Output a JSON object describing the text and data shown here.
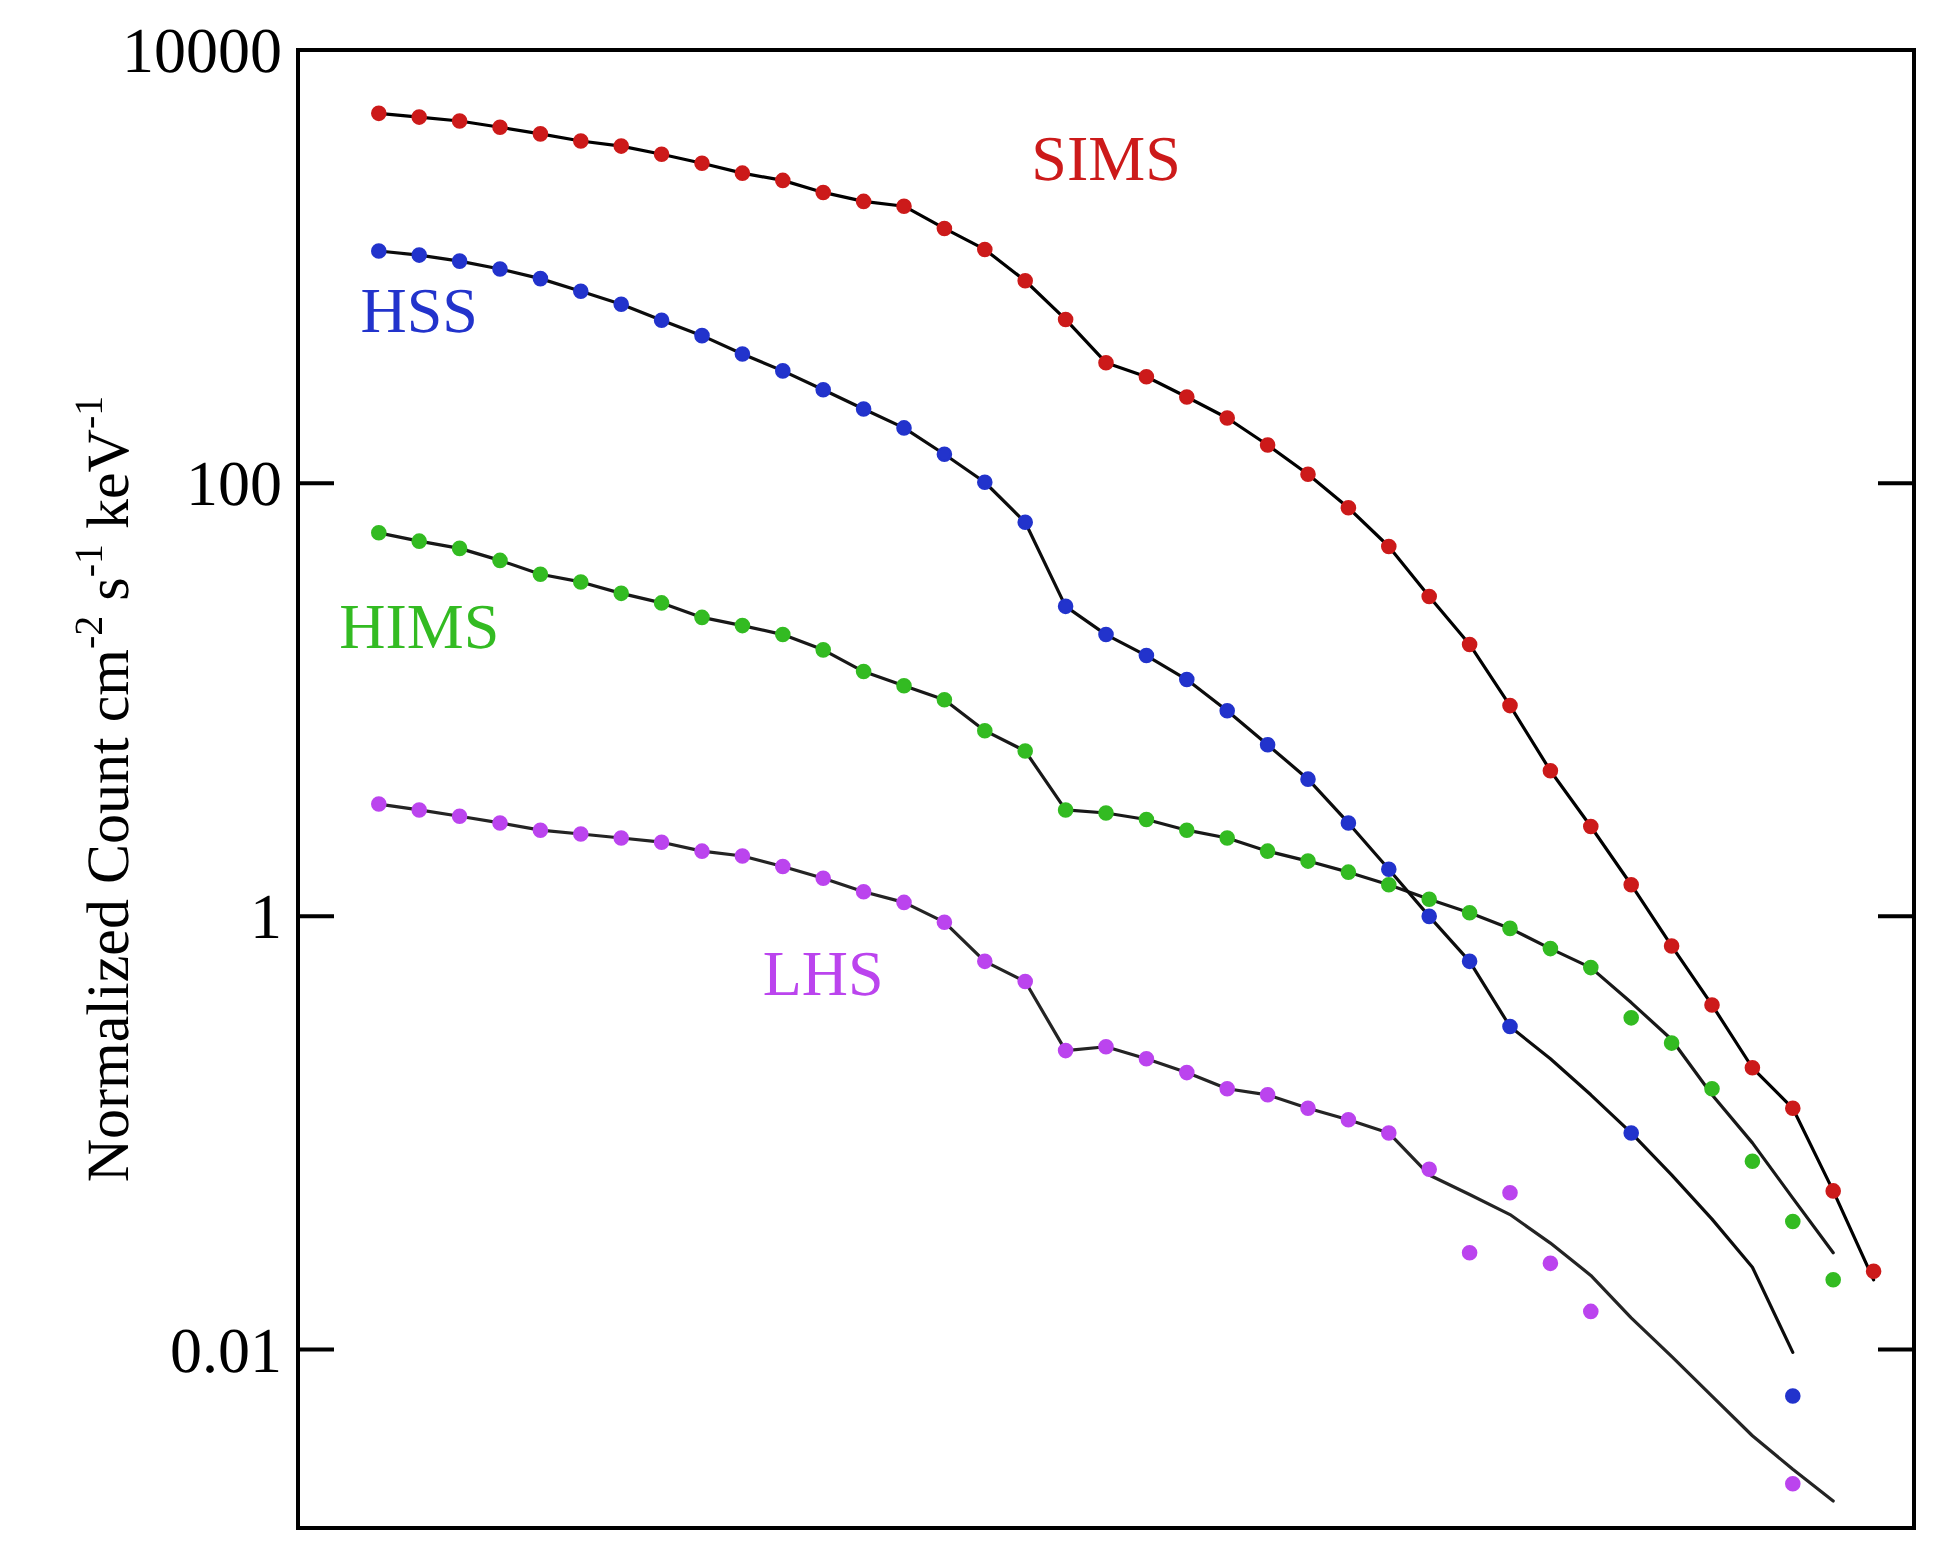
{
  "chart_data": {
    "type": "scatter",
    "ylabel": "Normalized Count cm$^{-2}$ s$^{-1}$ keV$^{-1}$",
    "log": "y",
    "tick_labels": "y",
    "marker": "circle",
    "categories": [
      null,
      null,
      null,
      null,
      null,
      null,
      null,
      null,
      null,
      null,
      null,
      null,
      null,
      null,
      null,
      null,
      null,
      null,
      null,
      null,
      null,
      null,
      null,
      null,
      null,
      null,
      null,
      null,
      null,
      null,
      null,
      null,
      null,
      null,
      null,
      null,
      null,
      null,
      null,
      null,
      null
    ],
    "ylim": [
      0.0015,
      10000
    ],
    "yticks": [
      0.01,
      1,
      100,
      10000
    ],
    "series": [
      {
        "name": "SIMS",
        "color": "#cc1a1a",
        "values": [
          null,
          null,
          5100,
          4900,
          4700,
          4400,
          4100,
          3800,
          3600,
          3300,
          3000,
          2700,
          2500,
          2200,
          2000,
          1900,
          1500,
          1200,
          860,
          570,
          360,
          310,
          250,
          200,
          150,
          110,
          77,
          51,
          30,
          18,
          9.4,
          4.7,
          2.6,
          1.4,
          0.73,
          0.39,
          0.2,
          0.13,
          0.054,
          0.023,
          null
        ]
      },
      {
        "name": "HSS",
        "color": "#2233cc",
        "values": [
          null,
          null,
          1180,
          1130,
          1060,
          975,
          880,
          770,
          670,
          565,
          480,
          395,
          330,
          270,
          220,
          180,
          136,
          101,
          66,
          27,
          20,
          16,
          12.4,
          8.9,
          6.2,
          4.3,
          2.7,
          1.65,
          1.0,
          0.62,
          0.31,
          null,
          null,
          0.1,
          null,
          null,
          null,
          0.0061,
          null,
          null,
          null
        ]
      },
      {
        "name": "HIMS",
        "color": "#33bb22",
        "values": [
          null,
          null,
          59,
          54,
          50,
          44,
          38,
          35,
          31,
          28,
          24,
          22,
          20,
          17,
          13.5,
          11.6,
          10,
          7.2,
          5.8,
          3.1,
          3.0,
          2.8,
          2.5,
          2.3,
          2.0,
          1.8,
          1.6,
          1.4,
          1.2,
          1.04,
          0.88,
          0.71,
          0.58,
          0.34,
          0.26,
          0.16,
          0.074,
          0.039,
          0.021,
          null,
          null
        ]
      },
      {
        "name": "LHS",
        "color": "#bb44ee",
        "values": [
          null,
          null,
          3.3,
          3.1,
          2.9,
          2.7,
          2.5,
          2.4,
          2.3,
          2.2,
          2.0,
          1.9,
          1.7,
          1.5,
          1.3,
          1.16,
          0.94,
          0.62,
          0.5,
          0.24,
          0.25,
          0.22,
          0.19,
          0.16,
          0.15,
          0.13,
          0.115,
          0.1,
          0.068,
          0.028,
          0.053,
          0.025,
          0.015,
          null,
          null,
          null,
          null,
          0.0024,
          null,
          null,
          null
        ]
      },
      {
        "type": "line",
        "color": "#000000",
        "marker": "none",
        "values": [
          null,
          null,
          5100,
          4900,
          4700,
          4400,
          4100,
          3800,
          3600,
          3300,
          3000,
          2700,
          2500,
          2200,
          2000,
          1900,
          1500,
          1200,
          860,
          570,
          360,
          310,
          250,
          200,
          150,
          110,
          77,
          51,
          30,
          18,
          9.4,
          4.7,
          2.6,
          1.4,
          0.73,
          0.39,
          0.2,
          0.13,
          0.054,
          0.021,
          null
        ]
      },
      {
        "type": "line",
        "color": "#0c0c0c",
        "marker": "none",
        "values": [
          null,
          null,
          1180,
          1130,
          1060,
          975,
          880,
          770,
          670,
          565,
          480,
          395,
          330,
          270,
          220,
          180,
          136,
          101,
          66,
          27,
          20,
          16,
          12.4,
          8.9,
          6.2,
          4.3,
          2.7,
          1.65,
          1.0,
          0.62,
          0.31,
          0.22,
          0.15,
          0.1,
          0.064,
          0.04,
          0.024,
          0.0097,
          null,
          null,
          null
        ]
      },
      {
        "type": "line",
        "color": "#181818",
        "marker": "none",
        "values": [
          null,
          null,
          59,
          54,
          50,
          44,
          38,
          35,
          31,
          28,
          24,
          22,
          20,
          17,
          13.5,
          11.6,
          10,
          7.2,
          5.8,
          3.1,
          3.0,
          2.8,
          2.5,
          2.3,
          2.0,
          1.8,
          1.6,
          1.4,
          1.2,
          1.04,
          0.88,
          0.71,
          0.58,
          0.4,
          0.27,
          0.15,
          0.09,
          0.05,
          0.028,
          null,
          null
        ]
      },
      {
        "type": "line",
        "color": "#242424",
        "marker": "none",
        "values": [
          null,
          null,
          3.3,
          3.1,
          2.9,
          2.7,
          2.5,
          2.4,
          2.3,
          2.2,
          2.0,
          1.9,
          1.7,
          1.5,
          1.3,
          1.16,
          0.94,
          0.62,
          0.5,
          0.24,
          0.25,
          0.22,
          0.19,
          0.16,
          0.15,
          0.13,
          0.115,
          0.1,
          0.064,
          0.052,
          0.042,
          0.031,
          0.022,
          0.014,
          0.0093,
          0.0061,
          0.004,
          0.0028,
          0.002,
          null,
          null
        ]
      }
    ]
  }
}
